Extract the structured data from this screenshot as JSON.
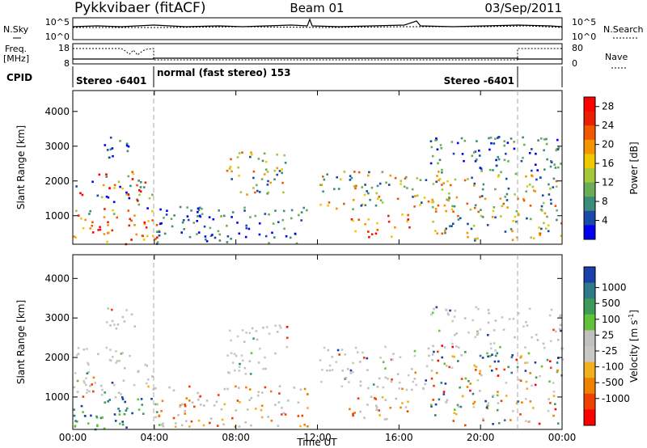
{
  "header": {
    "station": "Pykkvibaer (fitACF)",
    "beam": "Beam 01",
    "date": "03/Sep/2011"
  },
  "aux_panels": {
    "nsky_label": "N.Sky",
    "nsearch_label": "N.Search",
    "freq_label": "Freq.",
    "freq_unit": "[MHz]",
    "nave_label": "Nave",
    "cpid_label": "CPID",
    "sky_ticks": [
      "10^5",
      "10^0"
    ],
    "freq_ticks": [
      "18",
      "8"
    ],
    "nave_ticks": [
      "80",
      "0"
    ],
    "cpid_segments": [
      {
        "label": "Stereo -6401",
        "start_hr": 0,
        "end_hr": 4.0
      },
      {
        "label": "normal (fast stereo) 153",
        "start_hr": 4.0,
        "end_hr": 21.8
      },
      {
        "label": "Stereo -6401",
        "start_hr": 21.8,
        "end_hr": 24
      }
    ]
  },
  "colors": {
    "power_scale": [
      "#0000ee",
      "#1a4aa8",
      "#3c8c7a",
      "#6aac58",
      "#a4c83a",
      "#f0c800",
      "#f49400",
      "#f05800",
      "#e82000",
      "#ff0000"
    ],
    "velocity_scale": [
      "#1a3fa8",
      "#2f7a8a",
      "#3e9a58",
      "#62c238",
      "#c0c0bc",
      "#c8c8c4",
      "#f0b020",
      "#f08000",
      "#f04000",
      "#ff0000"
    ]
  },
  "chart_data": [
    {
      "type": "heatmap",
      "title": "",
      "variable": "Power",
      "xlabel": "",
      "ylabel": "Slant Range [km]",
      "xlim": [
        0,
        24
      ],
      "ylim": [
        180,
        4600
      ],
      "yticks": [
        1000,
        2000,
        3000,
        4000
      ],
      "colorbar": {
        "label": "Power [dB]",
        "range": [
          0,
          30
        ],
        "ticks": [
          4,
          8,
          12,
          16,
          20,
          24,
          28
        ]
      },
      "scatter_regions": [
        {
          "t": [
            0.0,
            4.2
          ],
          "range": [
            200,
            1000
          ],
          "level": "high"
        },
        {
          "t": [
            0.0,
            4.0
          ],
          "range": [
            1000,
            2300
          ],
          "level": "mixed"
        },
        {
          "t": [
            1.5,
            3.0
          ],
          "range": [
            2700,
            3300
          ],
          "level": "low"
        },
        {
          "t": [
            4.0,
            11.5
          ],
          "range": [
            220,
            1300
          ],
          "level": "low"
        },
        {
          "t": [
            7.5,
            10.5
          ],
          "range": [
            1600,
            2900
          ],
          "level": "mid"
        },
        {
          "t": [
            12.0,
            18.5
          ],
          "range": [
            1200,
            2300
          ],
          "level": "mid"
        },
        {
          "t": [
            13.5,
            16.5
          ],
          "range": [
            400,
            1100
          ],
          "level": "high"
        },
        {
          "t": [
            17.5,
            24.0
          ],
          "range": [
            300,
            2200
          ],
          "level": "mid"
        },
        {
          "t": [
            17.5,
            24.0
          ],
          "range": [
            2200,
            3300
          ],
          "level": "low"
        }
      ]
    },
    {
      "type": "heatmap",
      "title": "",
      "variable": "Velocity",
      "xlabel": "Time UT",
      "ylabel": "Slant Range [km]",
      "xlim": [
        0,
        24
      ],
      "ylim": [
        180,
        4600
      ],
      "xticks": [
        "00:00",
        "04:00",
        "08:00",
        "12:00",
        "16:00",
        "20:00",
        "00:00"
      ],
      "yticks": [
        1000,
        2000,
        3000,
        4000
      ],
      "colorbar": {
        "label": "Velocity [m s^-1]",
        "ticks": [
          "1000",
          "500",
          "100",
          "25",
          "-25",
          "-100",
          "-500",
          "-1000"
        ]
      },
      "scatter_regions": [
        {
          "t": [
            0.0,
            4.2
          ],
          "range": [
            200,
            1000
          ],
          "level": "toward"
        },
        {
          "t": [
            0.0,
            4.0
          ],
          "range": [
            1000,
            2300
          ],
          "level": "near-zero"
        },
        {
          "t": [
            1.5,
            3.0
          ],
          "range": [
            2700,
            3300
          ],
          "level": "near-zero"
        },
        {
          "t": [
            4.0,
            11.5
          ],
          "range": [
            220,
            1300
          ],
          "level": "away"
        },
        {
          "t": [
            7.5,
            10.5
          ],
          "range": [
            1600,
            2900
          ],
          "level": "near-zero"
        },
        {
          "t": [
            12.0,
            18.5
          ],
          "range": [
            1200,
            2300
          ],
          "level": "near-zero"
        },
        {
          "t": [
            13.5,
            16.5
          ],
          "range": [
            400,
            1100
          ],
          "level": "away"
        },
        {
          "t": [
            17.5,
            24.0
          ],
          "range": [
            300,
            2200
          ],
          "level": "mixed"
        },
        {
          "t": [
            17.5,
            24.0
          ],
          "range": [
            2200,
            3300
          ],
          "level": "near-zero"
        }
      ]
    }
  ]
}
